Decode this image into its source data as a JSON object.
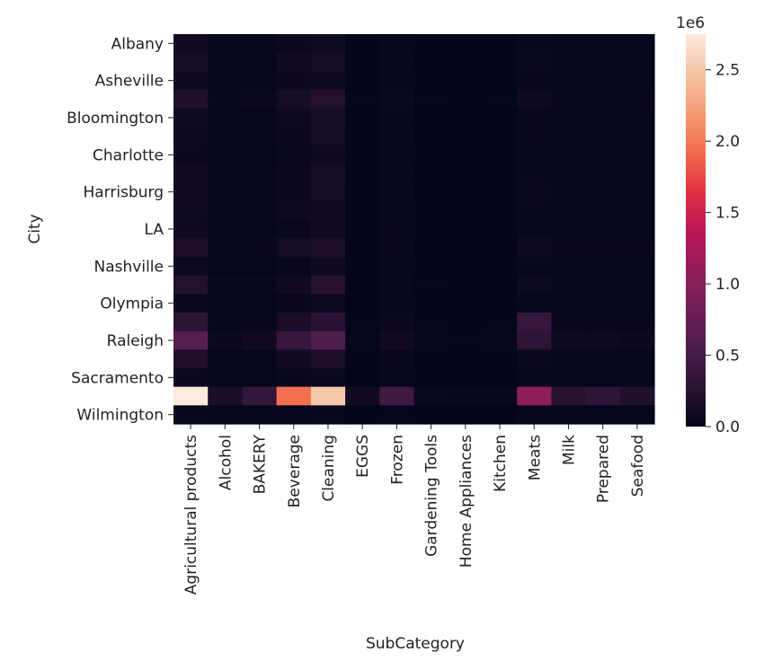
{
  "chart_data": {
    "type": "heatmap",
    "xlabel": "SubCategory",
    "ylabel": "City",
    "x_tick_labels": [
      "Agricultural products",
      "Alcohol",
      "BAKERY",
      "Beverage",
      "Cleaning",
      "EGGS",
      "Frozen",
      "Gardening Tools",
      "Home Appliances",
      "Kitchen",
      "Meats",
      "Milk",
      "Prepared",
      "Seafood"
    ],
    "y_tick_labels": [
      "Albany",
      "Asheville",
      "Bloomington",
      "Charlotte",
      "Harrisburg",
      "LA",
      "Nashville",
      "Olympia",
      "Raleigh",
      "Sacramento",
      "Wilmington"
    ],
    "n_rows": 21,
    "y_tick_rows": [
      0,
      2,
      4,
      6,
      8,
      10,
      12,
      14,
      16,
      18,
      20
    ],
    "values": [
      [
        100000,
        30000,
        20000,
        60000,
        90000,
        5000,
        20000,
        5000,
        5000,
        5000,
        30000,
        20000,
        20000,
        20000
      ],
      [
        130000,
        25000,
        25000,
        110000,
        120000,
        5000,
        30000,
        5000,
        5000,
        5000,
        50000,
        30000,
        30000,
        30000
      ],
      [
        80000,
        20000,
        20000,
        60000,
        80000,
        5000,
        20000,
        5000,
        5000,
        5000,
        40000,
        20000,
        20000,
        20000
      ],
      [
        200000,
        40000,
        50000,
        130000,
        220000,
        10000,
        50000,
        10000,
        5000,
        10000,
        80000,
        40000,
        40000,
        40000
      ],
      [
        90000,
        20000,
        25000,
        70000,
        130000,
        5000,
        30000,
        5000,
        5000,
        5000,
        40000,
        20000,
        20000,
        20000
      ],
      [
        80000,
        20000,
        20000,
        60000,
        120000,
        5000,
        30000,
        5000,
        5000,
        5000,
        40000,
        20000,
        20000,
        20000
      ],
      [
        60000,
        15000,
        15000,
        50000,
        80000,
        5000,
        20000,
        5000,
        5000,
        5000,
        30000,
        20000,
        20000,
        20000
      ],
      [
        110000,
        20000,
        20000,
        60000,
        140000,
        5000,
        30000,
        5000,
        5000,
        5000,
        40000,
        20000,
        20000,
        20000
      ],
      [
        100000,
        20000,
        20000,
        60000,
        120000,
        5000,
        30000,
        5000,
        5000,
        5000,
        50000,
        30000,
        30000,
        30000
      ],
      [
        90000,
        20000,
        20000,
        70000,
        110000,
        5000,
        25000,
        5000,
        5000,
        5000,
        40000,
        20000,
        20000,
        20000
      ],
      [
        80000,
        15000,
        20000,
        50000,
        100000,
        5000,
        25000,
        5000,
        5000,
        5000,
        30000,
        20000,
        20000,
        20000
      ],
      [
        170000,
        30000,
        35000,
        120000,
        170000,
        5000,
        40000,
        5000,
        5000,
        5000,
        80000,
        40000,
        40000,
        40000
      ],
      [
        70000,
        15000,
        15000,
        40000,
        80000,
        5000,
        20000,
        5000,
        5000,
        5000,
        30000,
        20000,
        20000,
        20000
      ],
      [
        220000,
        30000,
        40000,
        100000,
        240000,
        5000,
        40000,
        10000,
        5000,
        5000,
        70000,
        30000,
        30000,
        30000
      ],
      [
        60000,
        15000,
        15000,
        40000,
        70000,
        5000,
        20000,
        5000,
        5000,
        5000,
        30000,
        20000,
        20000,
        20000
      ],
      [
        290000,
        30000,
        40000,
        150000,
        260000,
        10000,
        60000,
        10000,
        5000,
        10000,
        370000,
        40000,
        40000,
        40000
      ],
      [
        620000,
        60000,
        100000,
        380000,
        570000,
        20000,
        100000,
        20000,
        10000,
        20000,
        300000,
        80000,
        80000,
        60000
      ],
      [
        200000,
        30000,
        30000,
        100000,
        180000,
        5000,
        40000,
        5000,
        5000,
        5000,
        60000,
        30000,
        30000,
        30000
      ],
      [
        60000,
        10000,
        10000,
        40000,
        60000,
        5000,
        20000,
        5000,
        5000,
        5000,
        20000,
        20000,
        20000,
        20000
      ],
      [
        2750000,
        150000,
        350000,
        1950000,
        2500000,
        100000,
        450000,
        50000,
        20000,
        30000,
        1050000,
        250000,
        300000,
        200000
      ],
      [
        30000,
        10000,
        10000,
        20000,
        30000,
        5000,
        10000,
        5000,
        5000,
        5000,
        20000,
        10000,
        10000,
        10000
      ]
    ],
    "colormap": "rocket",
    "colormap_stops": [
      "#03051a",
      "#2b1334",
      "#4c1d4b",
      "#6f1f57",
      "#951c5b",
      "#bc1656",
      "#e13342",
      "#f26c4c",
      "#f69c73",
      "#f6c4a6",
      "#faebdd"
    ],
    "vmin": 0,
    "vmax": 2750000,
    "colorbar": {
      "ticks": [
        0,
        500000,
        1000000,
        1500000,
        2000000,
        2500000
      ],
      "tick_labels": [
        "0.0",
        "0.5",
        "1.0",
        "1.5",
        "2.0",
        "2.5"
      ],
      "offset_label": "1e6"
    }
  }
}
